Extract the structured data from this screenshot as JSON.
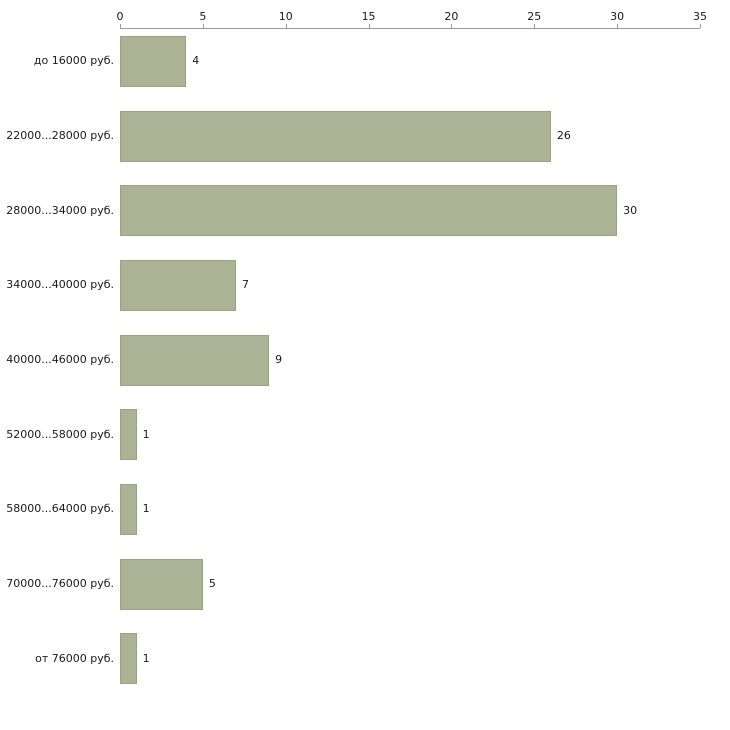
{
  "chart_data": {
    "type": "bar",
    "orientation": "horizontal",
    "title": "",
    "xlabel": "",
    "ylabel": "",
    "categories": [
      "до 16000 руб.",
      "22000...28000 руб.",
      "28000...34000 руб.",
      "34000...40000 руб.",
      "40000...46000 руб.",
      "52000...58000 руб.",
      "58000...64000 руб.",
      "70000...76000 руб.",
      "от 76000 руб."
    ],
    "values": [
      4,
      26,
      30,
      7,
      9,
      1,
      1,
      5,
      1
    ],
    "value_labels": [
      "4",
      "26",
      "30",
      "7",
      "9",
      "1",
      "1",
      "5",
      "1"
    ],
    "xlim": [
      0,
      35
    ],
    "x_ticks": [
      0,
      5,
      10,
      15,
      20,
      25,
      30,
      35
    ],
    "axis_position": "top",
    "grid": false,
    "legend": false,
    "colors": {
      "bar_fill": "#abb394",
      "bar_border": "#99a27e",
      "axis": "#9a9a9a",
      "text": "#1a1a1a"
    }
  }
}
